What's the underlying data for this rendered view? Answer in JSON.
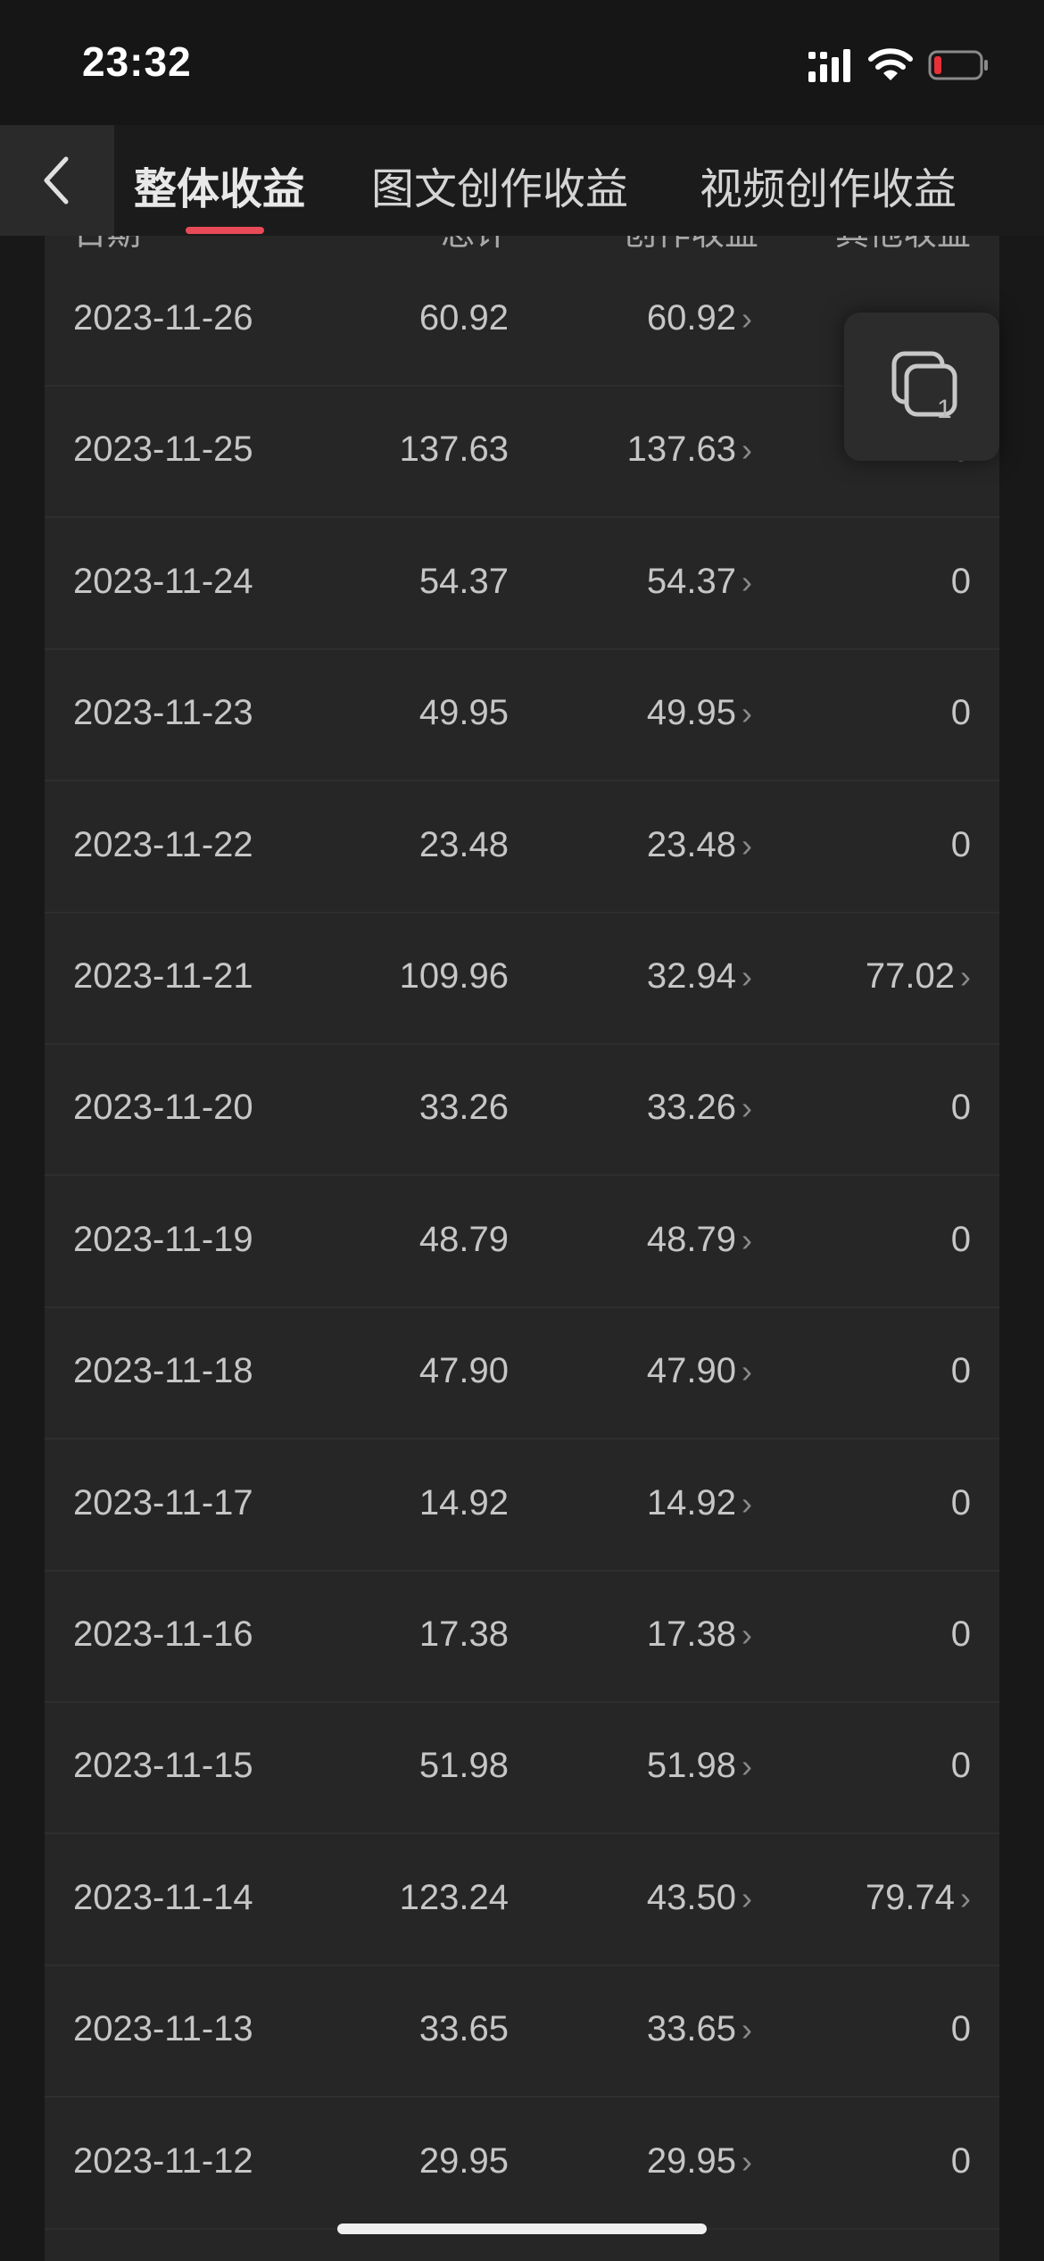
{
  "status": {
    "time": "23:32"
  },
  "tabs": [
    {
      "label": "整体收益",
      "active": true
    },
    {
      "label": "图文创作收益",
      "active": false
    },
    {
      "label": "视频创作收益",
      "active": false
    }
  ],
  "table": {
    "headers": {
      "date": "日期",
      "total": "总计",
      "creation": "创作收益",
      "other": "其他收益"
    },
    "rows": [
      {
        "date": "2023-11-26",
        "total": "60.92",
        "creation": "60.92",
        "other": ""
      },
      {
        "date": "2023-11-25",
        "total": "137.63",
        "creation": "137.63",
        "other": "0"
      },
      {
        "date": "2023-11-24",
        "total": "54.37",
        "creation": "54.37",
        "other": "0"
      },
      {
        "date": "2023-11-23",
        "total": "49.95",
        "creation": "49.95",
        "other": "0"
      },
      {
        "date": "2023-11-22",
        "total": "23.48",
        "creation": "23.48",
        "other": "0"
      },
      {
        "date": "2023-11-21",
        "total": "109.96",
        "creation": "32.94",
        "other": "77.02"
      },
      {
        "date": "2023-11-20",
        "total": "33.26",
        "creation": "33.26",
        "other": "0"
      },
      {
        "date": "2023-11-19",
        "total": "48.79",
        "creation": "48.79",
        "other": "0"
      },
      {
        "date": "2023-11-18",
        "total": "47.90",
        "creation": "47.90",
        "other": "0"
      },
      {
        "date": "2023-11-17",
        "total": "14.92",
        "creation": "14.92",
        "other": "0"
      },
      {
        "date": "2023-11-16",
        "total": "17.38",
        "creation": "17.38",
        "other": "0"
      },
      {
        "date": "2023-11-15",
        "total": "51.98",
        "creation": "51.98",
        "other": "0"
      },
      {
        "date": "2023-11-14",
        "total": "123.24",
        "creation": "43.50",
        "other": "79.74"
      },
      {
        "date": "2023-11-13",
        "total": "33.65",
        "creation": "33.65",
        "other": "0"
      },
      {
        "date": "2023-11-12",
        "total": "29.95",
        "creation": "29.95",
        "other": "0"
      }
    ]
  },
  "floating": {
    "count": "1",
    "icon": "copy-window-icon"
  },
  "colors": {
    "accent": "#e84a57",
    "background": "#181818",
    "card": "#262626"
  }
}
